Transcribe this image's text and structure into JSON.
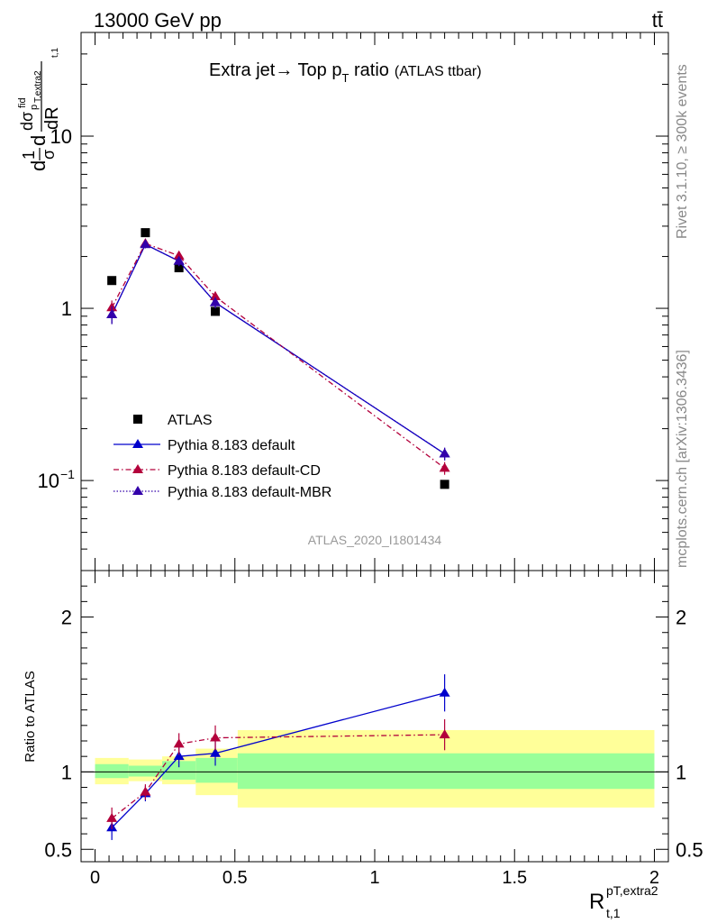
{
  "header": {
    "energy": "13000 GeV pp",
    "process": "tt̄"
  },
  "side": {
    "rivet": "Rivet 3.1.10, ≥ 300k events",
    "ref": "mcplots.cern.ch [arXiv:1306.3436]"
  },
  "colors": {
    "atlas": "#000000",
    "default": "#0000cc",
    "cd": "#b3003b",
    "mbr": "#3300aa",
    "band_inner": "#99ff99",
    "band_outer": "#ffff99"
  },
  "chart_data": [
    {
      "type": "scatter",
      "title": "Extra jet→ Top pT ratio (ATLAS ttbar)",
      "title_main": "Extra jet",
      "title_arrow": "→",
      "title_text": " Top p",
      "title_sub": "T",
      "title_rest": " ratio",
      "title_tag": "(ATLAS ttbar)",
      "ylabel_parts": [
        "d",
        "1",
        "σ",
        "d",
        "dσ",
        "fid",
        "p",
        "T,extra2",
        "dR",
        "t,1"
      ],
      "yscale": "log",
      "ylim": [
        0.03,
        40
      ],
      "xlim": [
        -0.05,
        2.05
      ],
      "yticks": [
        {
          "value": 0.1,
          "label": "10",
          "sup": "−1"
        },
        {
          "value": 1,
          "label": "1",
          "sup": ""
        },
        {
          "value": 10,
          "label": "10",
          "sup": ""
        }
      ],
      "watermark": "ATLAS_2020_I1801434",
      "legend": {
        "position": "lower-left",
        "entries": [
          "ATLAS",
          "Pythia 8.183 default",
          "Pythia 8.183 default-CD",
          "Pythia 8.183 default-MBR"
        ]
      },
      "series": [
        {
          "name": "ATLAS",
          "marker": "square",
          "x": [
            0.06,
            0.18,
            0.3,
            0.43,
            1.25
          ],
          "y": [
            1.45,
            2.75,
            1.72,
            0.96,
            0.095
          ]
        },
        {
          "name": "Pythia 8.183 default",
          "marker": "triangle",
          "line": "solid",
          "x": [
            0.06,
            0.18,
            0.3,
            0.43,
            1.25
          ],
          "y": [
            0.92,
            2.35,
            1.88,
            1.08,
            0.143
          ],
          "err": [
            0.11,
            0.12,
            0.12,
            0.08,
            0.012
          ]
        },
        {
          "name": "Pythia 8.183 default-CD",
          "marker": "triangle",
          "line": "dashdot",
          "x": [
            0.06,
            0.18,
            0.3,
            0.43,
            1.25
          ],
          "y": [
            1.01,
            2.38,
            2.02,
            1.17,
            0.118
          ],
          "err": [
            0.1,
            0.12,
            0.12,
            0.08,
            0.01
          ]
        },
        {
          "name": "Pythia 8.183 default-MBR",
          "marker": "triangle",
          "line": "dotted",
          "x": [
            0.06,
            0.18,
            0.3,
            0.43,
            1.25
          ],
          "y": [
            0.92,
            2.35,
            1.88,
            1.08,
            0.143
          ],
          "err": [
            0.11,
            0.12,
            0.12,
            0.08,
            0.012
          ]
        }
      ]
    },
    {
      "type": "scatter",
      "title": "Ratio to ATLAS",
      "ylabel": "Ratio to ATLAS",
      "xlabel_main": "R",
      "xlabel_sup": "pT,extra2",
      "xlabel_sub": "t,1",
      "ylim": [
        0.42,
        2.3
      ],
      "xlim": [
        -0.05,
        2.05
      ],
      "xticks": [
        {
          "value": 0,
          "label": "0"
        },
        {
          "value": 0.5,
          "label": "0.5"
        },
        {
          "value": 1,
          "label": "1"
        },
        {
          "value": 1.5,
          "label": "1.5"
        },
        {
          "value": 2,
          "label": "2"
        }
      ],
      "yticks": [
        {
          "value": 0.5,
          "label": "0.5"
        },
        {
          "value": 1,
          "label": "1"
        },
        {
          "value": 2,
          "label": "2"
        }
      ],
      "bands": [
        {
          "x0": 0.0,
          "x1": 0.12,
          "inner": [
            0.96,
            1.05
          ],
          "outer": [
            0.92,
            1.09
          ]
        },
        {
          "x0": 0.12,
          "x1": 0.24,
          "inner": [
            0.97,
            1.04
          ],
          "outer": [
            0.94,
            1.08
          ]
        },
        {
          "x0": 0.24,
          "x1": 0.36,
          "inner": [
            0.95,
            1.07
          ],
          "outer": [
            0.92,
            1.1
          ]
        },
        {
          "x0": 0.36,
          "x1": 0.51,
          "inner": [
            0.93,
            1.09
          ],
          "outer": [
            0.85,
            1.15
          ]
        },
        {
          "x0": 0.51,
          "x1": 2.0,
          "inner": [
            0.89,
            1.12
          ],
          "outer": [
            0.77,
            1.27
          ]
        }
      ],
      "series": [
        {
          "name": "Pythia 8.183 default",
          "x": [
            0.06,
            0.18,
            0.3,
            0.43,
            1.25
          ],
          "y": [
            0.64,
            0.86,
            1.1,
            1.12,
            1.51
          ],
          "err": [
            0.08,
            0.05,
            0.07,
            0.08,
            0.12
          ]
        },
        {
          "name": "Pythia 8.183 default-CD",
          "x": [
            0.06,
            0.18,
            0.3,
            0.43,
            1.25
          ],
          "y": [
            0.7,
            0.87,
            1.18,
            1.22,
            1.24
          ],
          "err": [
            0.07,
            0.05,
            0.07,
            0.08,
            0.1
          ]
        }
      ]
    }
  ]
}
